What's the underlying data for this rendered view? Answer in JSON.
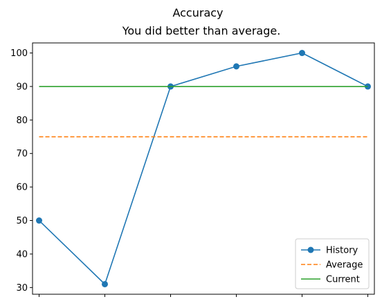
{
  "chart_data": {
    "type": "line",
    "title": "Accuracy",
    "subtitle": "You did better than average.",
    "xlabel": "",
    "ylabel": "",
    "x": [
      0,
      1,
      2,
      3,
      4,
      5
    ],
    "x_tick_labels_shown": false,
    "yticks": [
      30,
      40,
      50,
      60,
      70,
      80,
      90,
      100
    ],
    "ylim": [
      28,
      103
    ],
    "xlim": [
      -0.1,
      5.1
    ],
    "grid": false,
    "legend_position": "bottom-right",
    "series": [
      {
        "name": "History",
        "values": [
          50,
          31,
          90,
          96,
          100,
          90
        ],
        "style": "solid-marker",
        "color": "#1f77b4"
      },
      {
        "name": "Average",
        "values": [
          75,
          75,
          75,
          75,
          75,
          75
        ],
        "style": "dashed",
        "color": "#ff7f0e"
      },
      {
        "name": "Current",
        "values": [
          90,
          90,
          90,
          90,
          90,
          90
        ],
        "style": "solid",
        "color": "#2ca02c"
      }
    ]
  }
}
